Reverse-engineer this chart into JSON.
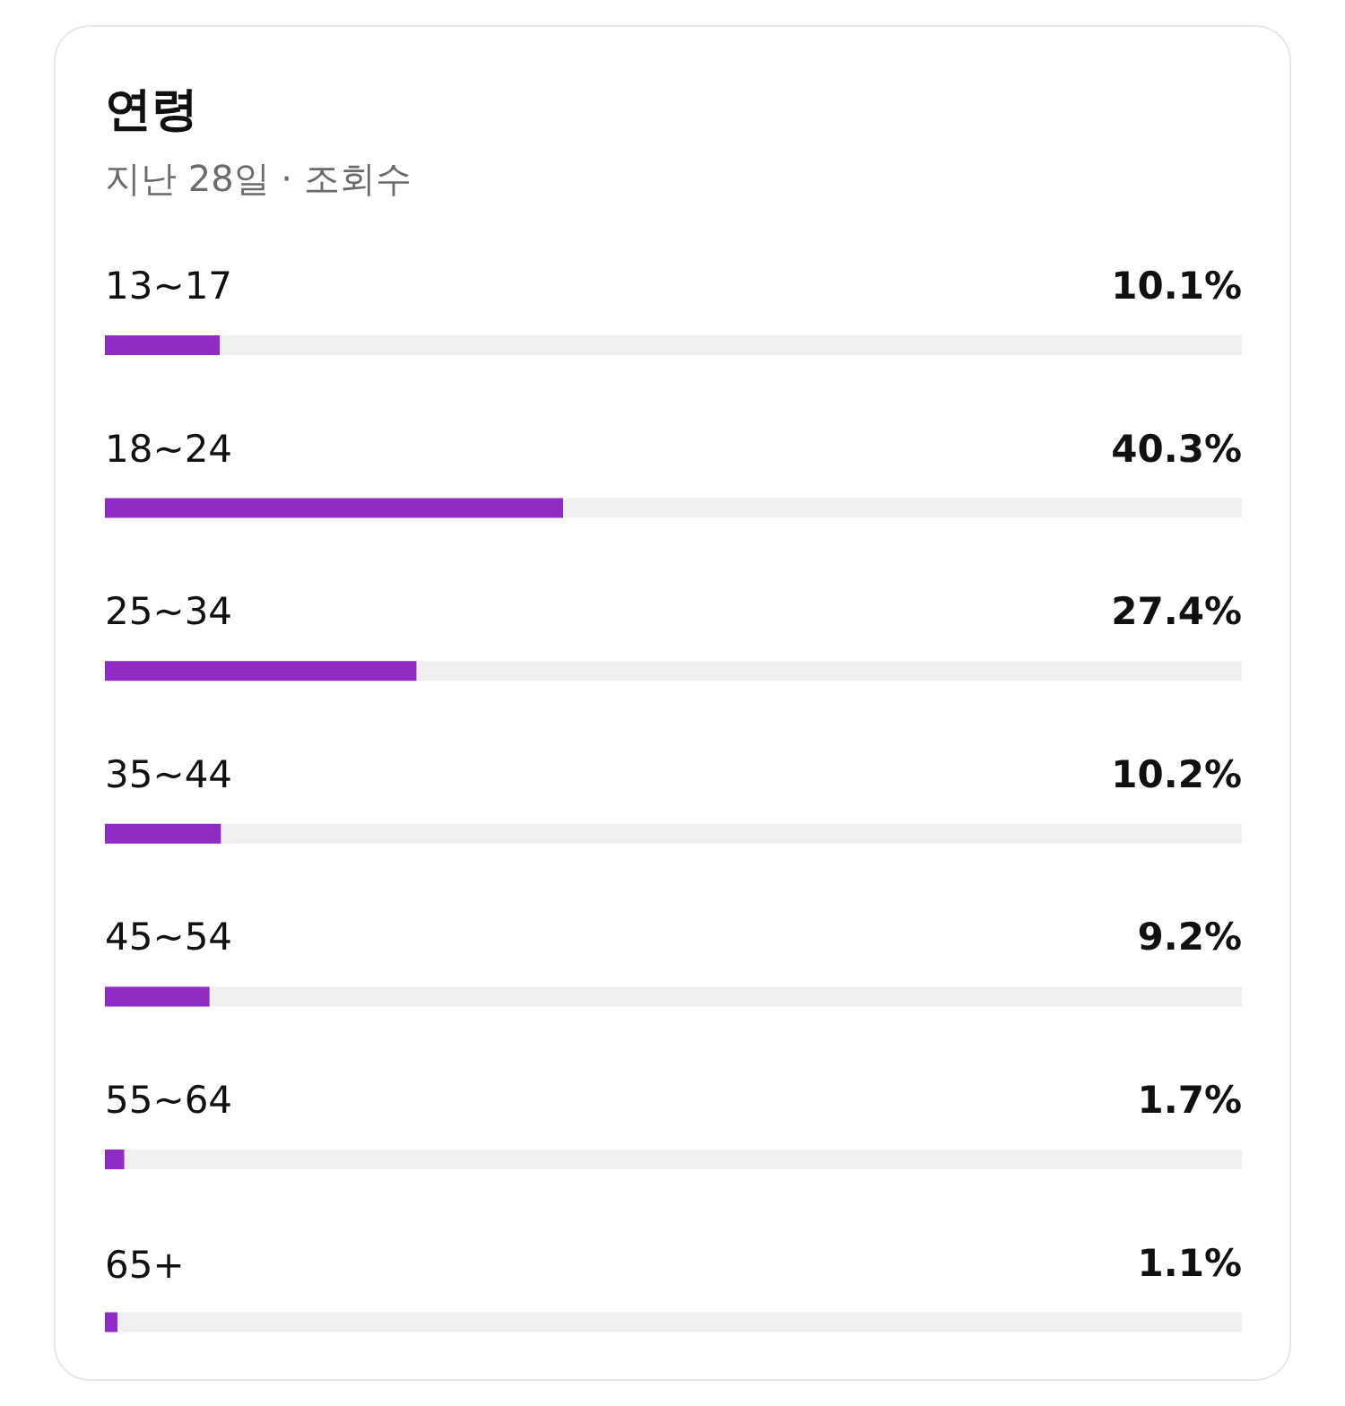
{
  "chart_data": {
    "type": "bar",
    "title": "연령",
    "subtitle": "지난 28일 · 조회수",
    "orientation": "horizontal",
    "categories": [
      "13~17",
      "18~24",
      "25~34",
      "35~44",
      "45~54",
      "55~64",
      "65+"
    ],
    "values": [
      10.1,
      40.3,
      27.4,
      10.2,
      9.2,
      1.7,
      1.1
    ],
    "value_labels": [
      "10.1%",
      "40.3%",
      "27.4%",
      "10.2%",
      "9.2%",
      "1.7%",
      "1.1%"
    ],
    "color": "#8f2cc4",
    "xlim": [
      0,
      100
    ],
    "tick_labels": false
  }
}
